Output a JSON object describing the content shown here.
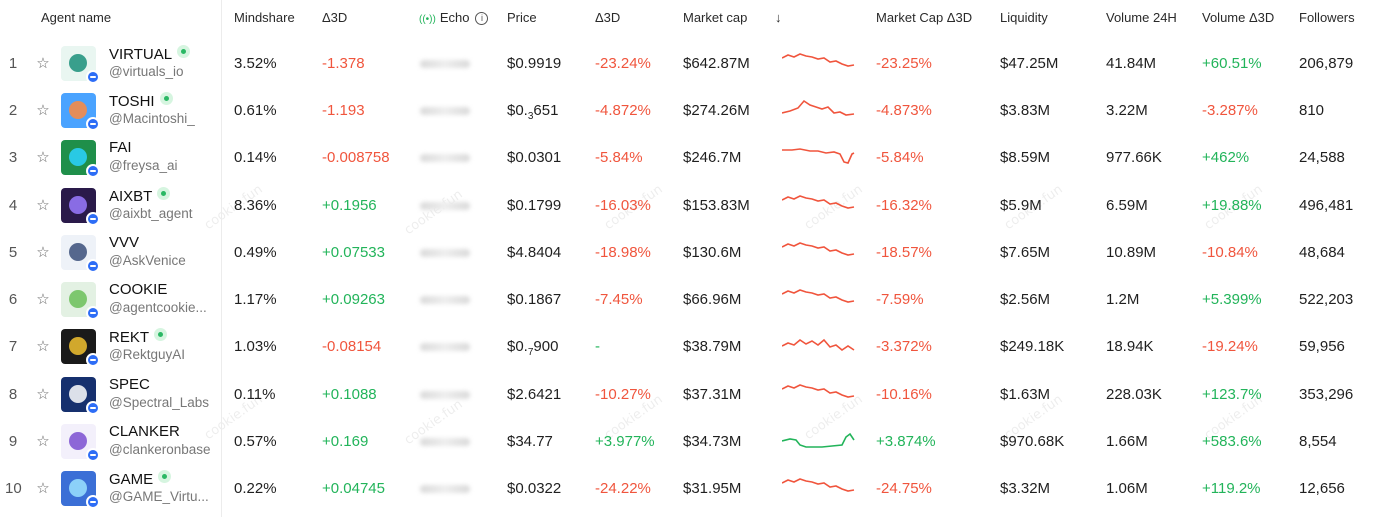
{
  "header": {
    "agent_name": "Agent name",
    "mindshare": "Mindshare",
    "delta3d_1": "Δ3D",
    "echo": "Echo",
    "echo_icon": "broadcast-icon",
    "price": "Price",
    "delta3d_2": "Δ3D",
    "market_cap": "Market cap",
    "sort_arrow": "↓",
    "market_cap_delta": "Market Cap Δ3D",
    "liquidity": "Liquidity",
    "volume24h": "Volume 24H",
    "volume_delta": "Volume Δ3D",
    "followers": "Followers"
  },
  "colors": {
    "positive": "#22b45a",
    "negative": "#f0553d",
    "badge": "#2d6df6"
  },
  "watermark": "cookie.fun",
  "rows": [
    {
      "rank": "1",
      "name": "VIRTUAL",
      "verified": true,
      "handle": "@virtuals_io",
      "mindshare": "3.52%",
      "mindshare_delta": "-1.378",
      "md_sign": "neg",
      "price": "$0.9919",
      "price_delta": "-23.24%",
      "pd_sign": "neg",
      "market_cap": "$642.87M",
      "mc_delta": "-23.25%",
      "mcd_sign": "neg",
      "liquidity": "$47.25M",
      "volume": "41.84M",
      "volume_delta": "+60.51%",
      "vd_sign": "pos",
      "followers": "206,879",
      "spark_trend": "down",
      "avatar_color": "#e9f6f1",
      "avatar_fg": "#1a8f7a"
    },
    {
      "rank": "2",
      "name": "TOSHI",
      "verified": true,
      "handle": "@Macintoshi_",
      "mindshare": "0.61%",
      "mindshare_delta": "-1.193",
      "md_sign": "neg",
      "price_main": "$0.",
      "price_sub": "3",
      "price_tail": "651",
      "price_delta": "-4.872%",
      "pd_sign": "neg",
      "market_cap": "$274.26M",
      "mc_delta": "-4.873%",
      "mcd_sign": "neg",
      "liquidity": "$3.83M",
      "volume": "3.22M",
      "volume_delta": "-3.287%",
      "vd_sign": "neg",
      "followers": "810",
      "spark_trend": "down",
      "avatar_color": "#4aa3ff",
      "avatar_fg": "#ff8a3d"
    },
    {
      "rank": "3",
      "name": "FAI",
      "verified": false,
      "handle": "@freysa_ai",
      "mindshare": "0.14%",
      "mindshare_delta": "-0.008758",
      "md_sign": "neg",
      "price": "$0.0301",
      "price_delta": "-5.84%",
      "pd_sign": "neg",
      "market_cap": "$246.7M",
      "mc_delta": "-5.84%",
      "mcd_sign": "neg",
      "liquidity": "$8.59M",
      "volume": "977.66K",
      "volume_delta": "+462%",
      "vd_sign": "pos",
      "followers": "24,588",
      "spark_trend": "dip",
      "avatar_color": "#1f8f4a",
      "avatar_fg": "#2bd3ff"
    },
    {
      "rank": "4",
      "name": "AIXBT",
      "verified": true,
      "handle": "@aixbt_agent",
      "mindshare": "8.36%",
      "mindshare_delta": "+0.1956",
      "md_sign": "pos",
      "price": "$0.1799",
      "price_delta": "-16.03%",
      "pd_sign": "neg",
      "market_cap": "$153.83M",
      "mc_delta": "-16.32%",
      "mcd_sign": "neg",
      "liquidity": "$5.9M",
      "volume": "6.59M",
      "volume_delta": "+19.88%",
      "vd_sign": "pos",
      "followers": "496,481",
      "spark_trend": "down",
      "avatar_color": "#2a1a4a",
      "avatar_fg": "#9a7bff"
    },
    {
      "rank": "5",
      "name": "VVV",
      "verified": false,
      "handle": "@AskVenice",
      "mindshare": "0.49%",
      "mindshare_delta": "+0.07533",
      "md_sign": "pos",
      "price": "$4.8404",
      "price_delta": "-18.98%",
      "pd_sign": "neg",
      "market_cap": "$130.6M",
      "mc_delta": "-18.57%",
      "mcd_sign": "neg",
      "liquidity": "$7.65M",
      "volume": "10.89M",
      "volume_delta": "-10.84%",
      "vd_sign": "neg",
      "followers": "48,684",
      "spark_trend": "down",
      "avatar_color": "#eef2f8",
      "avatar_fg": "#3a4f7a"
    },
    {
      "rank": "6",
      "name": "COOKIE",
      "verified": false,
      "handle": "@agentcookie...",
      "mindshare": "1.17%",
      "mindshare_delta": "+0.09263",
      "md_sign": "pos",
      "price": "$0.1867",
      "price_delta": "-7.45%",
      "pd_sign": "neg",
      "market_cap": "$66.96M",
      "mc_delta": "-7.59%",
      "mcd_sign": "neg",
      "liquidity": "$2.56M",
      "volume": "1.2M",
      "volume_delta": "+5.399%",
      "vd_sign": "pos",
      "followers": "522,203",
      "spark_trend": "down",
      "avatar_color": "#e3f1e3",
      "avatar_fg": "#6bbf59"
    },
    {
      "rank": "7",
      "name": "REKT",
      "verified": true,
      "handle": "@RektguyAI",
      "mindshare": "1.03%",
      "mindshare_delta": "-0.08154",
      "md_sign": "neg",
      "price_main": "$0.",
      "price_sub": "7",
      "price_tail": "900",
      "price_delta": "-",
      "pd_sign": "pos",
      "market_cap": "$38.79M",
      "mc_delta": "-3.372%",
      "mcd_sign": "neg",
      "liquidity": "$249.18K",
      "volume": "18.94K",
      "volume_delta": "-19.24%",
      "vd_sign": "neg",
      "followers": "59,956",
      "spark_trend": "flat",
      "avatar_color": "#1a1a1a",
      "avatar_fg": "#f2c230"
    },
    {
      "rank": "8",
      "name": "SPEC",
      "verified": false,
      "handle": "@Spectral_Labs",
      "mindshare": "0.11%",
      "mindshare_delta": "+0.1088",
      "md_sign": "pos",
      "price": "$2.6421",
      "price_delta": "-10.27%",
      "pd_sign": "neg",
      "market_cap": "$37.31M",
      "mc_delta": "-10.16%",
      "mcd_sign": "neg",
      "liquidity": "$1.63M",
      "volume": "228.03K",
      "volume_delta": "+123.7%",
      "vd_sign": "pos",
      "followers": "353,296",
      "spark_trend": "down",
      "avatar_color": "#16306e",
      "avatar_fg": "#ffffff"
    },
    {
      "rank": "9",
      "name": "CLANKER",
      "verified": false,
      "handle": "@clankeronbase",
      "mindshare": "0.57%",
      "mindshare_delta": "+0.169",
      "md_sign": "pos",
      "price": "$34.77",
      "price_delta": "+3.977%",
      "pd_sign": "pos",
      "market_cap": "$34.73M",
      "mc_delta": "+3.874%",
      "mcd_sign": "pos",
      "liquidity": "$970.68K",
      "volume": "1.66M",
      "volume_delta": "+583.6%",
      "vd_sign": "pos",
      "followers": "8,554",
      "spark_trend": "up",
      "avatar_color": "#f3f0fb",
      "avatar_fg": "#7a4fd0"
    },
    {
      "rank": "10",
      "name": "GAME",
      "verified": true,
      "handle": "@GAME_Virtu...",
      "mindshare": "0.22%",
      "mindshare_delta": "+0.04745",
      "md_sign": "pos",
      "price": "$0.0322",
      "price_delta": "-24.22%",
      "pd_sign": "neg",
      "market_cap": "$31.95M",
      "mc_delta": "-24.75%",
      "mcd_sign": "neg",
      "liquidity": "$3.32M",
      "volume": "1.06M",
      "volume_delta": "+119.2%",
      "vd_sign": "pos",
      "followers": "12,656",
      "spark_trend": "down",
      "avatar_color": "#3b6fd6",
      "avatar_fg": "#9be3ff"
    }
  ]
}
